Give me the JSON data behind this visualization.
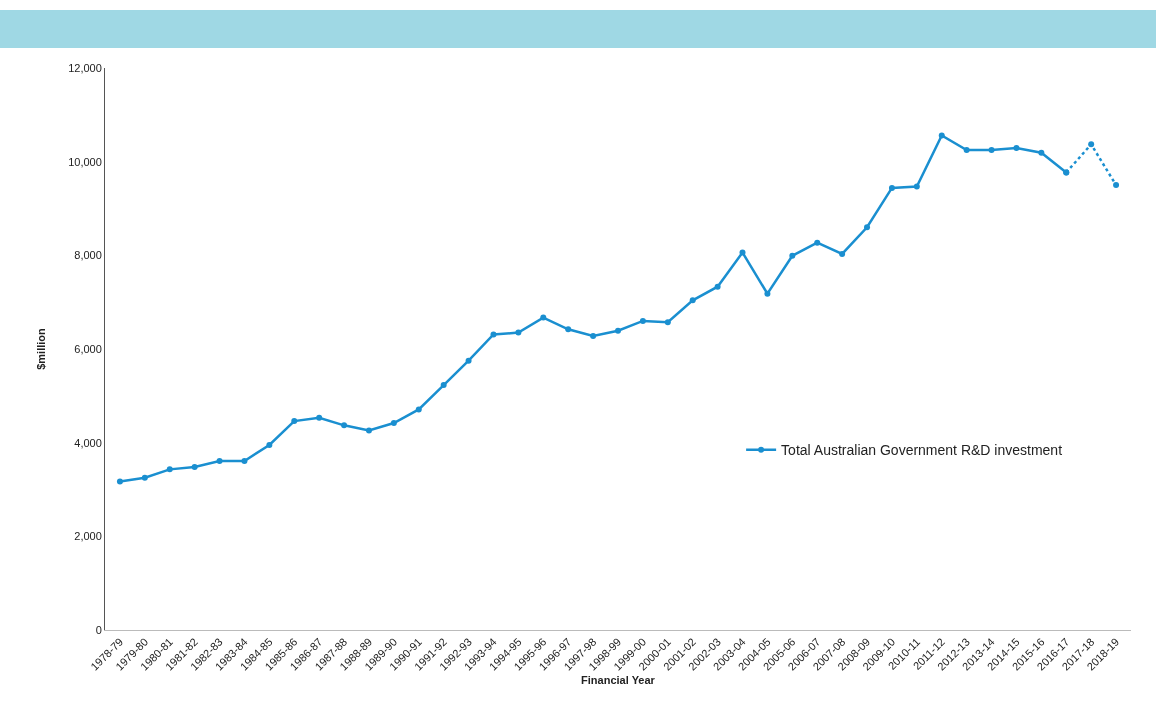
{
  "chart_data": {
    "type": "line",
    "xlabel": "Financial Year",
    "ylabel": "$million",
    "categories": [
      "1978-79",
      "1979-80",
      "1980-81",
      "1981-82",
      "1982-83",
      "1983-84",
      "1984-85",
      "1985-86",
      "1986-87",
      "1987-88",
      "1988-89",
      "1989-90",
      "1990-91",
      "1991-92",
      "1992-93",
      "1993-94",
      "1994-95",
      "1995-96",
      "1996-97",
      "1997-98",
      "1998-99",
      "1999-00",
      "2000-01",
      "2001-02",
      "2002-03",
      "2003-04",
      "2004-05",
      "2005-06",
      "2006-07",
      "2007-08",
      "2008-09",
      "2009-10",
      "2010-11",
      "2011-12",
      "2012-13",
      "2013-14",
      "2014-15",
      "2015-16",
      "2016-17",
      "2017-18",
      "2018-19"
    ],
    "series": [
      {
        "name": "Total Australian Government R&D investment",
        "color": "#1a8fd0",
        "line_style": "solid",
        "values": [
          3170,
          3250,
          3430,
          3480,
          3610,
          3610,
          3950,
          4460,
          4530,
          4370,
          4260,
          4420,
          4710,
          5230,
          5750,
          6310,
          6350,
          6670,
          6420,
          6280,
          6390,
          6600,
          6570,
          7040,
          7330,
          8060,
          7180,
          7990,
          8270,
          8030,
          8600,
          9440,
          9470,
          10560,
          10250,
          10250,
          10290,
          10190,
          9770,
          null,
          null
        ]
      },
      {
        "color": "#1a8fd0",
        "line_style": "dotted",
        "values": [
          null,
          null,
          null,
          null,
          null,
          null,
          null,
          null,
          null,
          null,
          null,
          null,
          null,
          null,
          null,
          null,
          null,
          null,
          null,
          null,
          null,
          null,
          null,
          null,
          null,
          null,
          null,
          null,
          null,
          null,
          null,
          null,
          null,
          null,
          null,
          null,
          null,
          null,
          9770,
          10370,
          9500
        ]
      }
    ],
    "ylim": [
      0,
      12000
    ],
    "yticks": [
      {
        "value": 0,
        "label": "0"
      },
      {
        "value": 2000,
        "label": "2,000"
      },
      {
        "value": 4000,
        "label": "4,000"
      },
      {
        "value": 6000,
        "label": "6,000"
      },
      {
        "value": 8000,
        "label": "8,000"
      },
      {
        "value": 10000,
        "label": "10,000"
      },
      {
        "value": 12000,
        "label": "12,000"
      }
    ],
    "grid": false,
    "legend": "right",
    "marker": "circle"
  }
}
